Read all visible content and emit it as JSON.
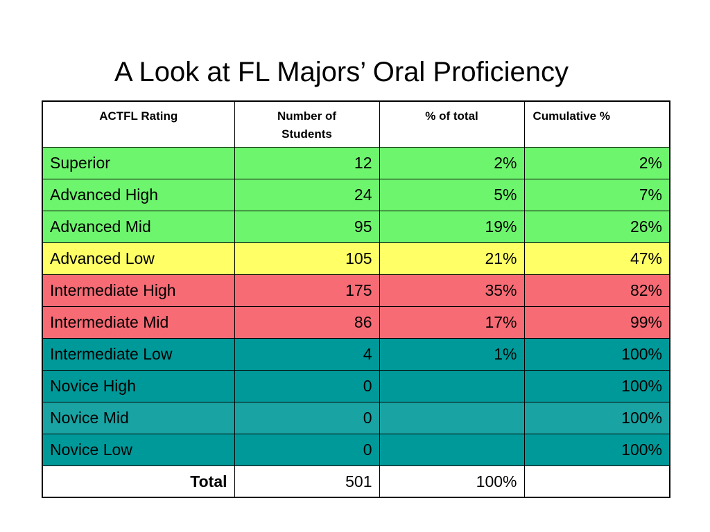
{
  "title": "A Look at FL Majors’ Oral Proficiency",
  "colors": {
    "green": "#6ef56e",
    "yellow": "#ffff66",
    "red": "#f76b75",
    "teal": "#009999",
    "teal_light": "#19a3a3",
    "white": "#ffffff"
  },
  "headers": {
    "rating": "ACTFL Rating",
    "count": "Number of Students",
    "pct": "% of total",
    "cum": "Cumulative %"
  },
  "rows": [
    {
      "rating": "Superior",
      "count": "12",
      "pct": "2%",
      "cum": "2%",
      "color": "#6ef56e"
    },
    {
      "rating": "Advanced High",
      "count": "24",
      "pct": "5%",
      "cum": "7%",
      "color": "#6ef56e"
    },
    {
      "rating": "Advanced Mid",
      "count": "95",
      "pct": "19%",
      "cum": "26%",
      "color": "#6ef56e"
    },
    {
      "rating": "Advanced Low",
      "count": "105",
      "pct": "21%",
      "cum": "47%",
      "color": "#ffff66"
    },
    {
      "rating": "Intermediate High",
      "count": "175",
      "pct": "35%",
      "cum": "82%",
      "color": "#f76b75"
    },
    {
      "rating": "Intermediate Mid",
      "count": "86",
      "pct": "17%",
      "cum": "99%",
      "color": "#f76b75"
    },
    {
      "rating": "Intermediate Low",
      "count": "4",
      "pct": "1%",
      "cum": "100%",
      "color": "#009999"
    },
    {
      "rating": "Novice High",
      "count": "0",
      "pct": "",
      "cum": "100%",
      "color": "#009999"
    },
    {
      "rating": "Novice Mid",
      "count": "0",
      "pct": "",
      "cum": "100%",
      "color": "#19a3a3"
    },
    {
      "rating": "Novice Low",
      "count": "0",
      "pct": "",
      "cum": "100%",
      "color": "#009999"
    }
  ],
  "total": {
    "label": "Total",
    "count": "501",
    "pct": "100%",
    "cum": ""
  }
}
